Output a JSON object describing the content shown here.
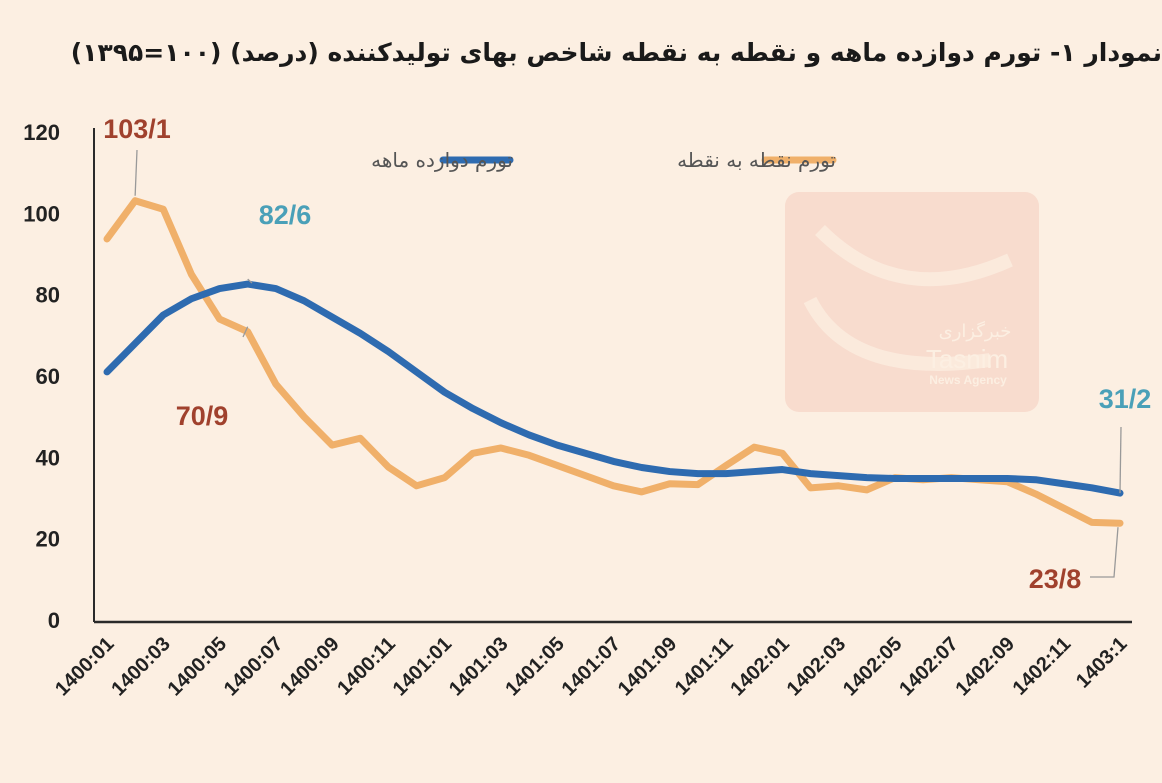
{
  "title": "نمودار ۱- تورم دوازده ماهه و نقطه به نقطه شاخص بهای تولیدکننده (درصد) (۱۰۰=۱۳۹۵)",
  "watermark": {
    "arabic": "خبرگزاری",
    "name": "Tasnim",
    "sub": "News Agency"
  },
  "chart_data": {
    "type": "line",
    "title": "نمودار ۱- تورم دوازده ماهه و نقطه به نقطه شاخص بهای تولیدکننده (درصد) (۱۰۰=۱۳۹۵)",
    "xlabel": "",
    "ylabel": "",
    "ylim": [
      0,
      120
    ],
    "yticks": [
      "0",
      "20",
      "40",
      "60",
      "80",
      "100",
      "120"
    ],
    "grid": false,
    "legend_position": "top",
    "x": [
      "1400:01",
      "1400:02",
      "1400:03",
      "1400:04",
      "1400:05",
      "1400:06",
      "1400:07",
      "1400:08",
      "1400:09",
      "1400:10",
      "1400:11",
      "1400:12",
      "1401:01",
      "1401:02",
      "1401:03",
      "1401:04",
      "1401:05",
      "1401:06",
      "1401:07",
      "1401:08",
      "1401:09",
      "1401:10",
      "1401:11",
      "1401:12",
      "1402:01",
      "1402:02",
      "1402:03",
      "1402:04",
      "1402:05",
      "1402:06",
      "1402:07",
      "1402:08",
      "1402:09",
      "1402:10",
      "1402:11",
      "1402:12",
      "1403:1"
    ],
    "xtick_labels": [
      "1400:01",
      "1400:03",
      "1400:05",
      "1400:07",
      "1400:09",
      "1400:11",
      "1401:01",
      "1401:03",
      "1401:05",
      "1401:07",
      "1401:09",
      "1401:11",
      "1402:01",
      "1402:03",
      "1402:05",
      "1402:07",
      "1402:09",
      "1402:11",
      "1403:1"
    ],
    "series": [
      {
        "name": "تورم دوازده ماهه",
        "color": "#2e6bb0",
        "values": [
          61,
          68,
          75,
          79,
          81.5,
          82.6,
          81.5,
          78.5,
          74.5,
          70.5,
          66,
          61,
          56,
          52,
          48.5,
          45.5,
          43,
          41,
          39,
          37.5,
          36.5,
          36,
          36,
          36.5,
          37,
          36,
          35.5,
          35,
          34.8,
          34.8,
          34.8,
          34.8,
          34.8,
          34.5,
          33.5,
          32.5,
          31.2
        ]
      },
      {
        "name": "تورم نقطه به نقطه",
        "color": "#f0b06a",
        "values": [
          93.7,
          103.1,
          101,
          85,
          74,
          70.9,
          58,
          50,
          43,
          44.7,
          37.6,
          33,
          35,
          41,
          42.3,
          40.5,
          38,
          35.5,
          33,
          31.5,
          33.5,
          33.3,
          38,
          42.5,
          41,
          32.5,
          33,
          32,
          35,
          34.5,
          35,
          34.5,
          34,
          31,
          27.5,
          24,
          23.8
        ]
      }
    ],
    "annotations": [
      {
        "series": 1,
        "index": 1,
        "text": "103/1",
        "color": "#a0412d"
      },
      {
        "series": 0,
        "index": 5,
        "text": "82/6",
        "color": "#4aa0b8"
      },
      {
        "series": 1,
        "index": 5,
        "text": "70/9",
        "color": "#a0412d"
      },
      {
        "series": 0,
        "index": 36,
        "text": "31/2",
        "color": "#4aa0b8"
      },
      {
        "series": 1,
        "index": 36,
        "text": "23/8",
        "color": "#a0412d"
      }
    ]
  }
}
